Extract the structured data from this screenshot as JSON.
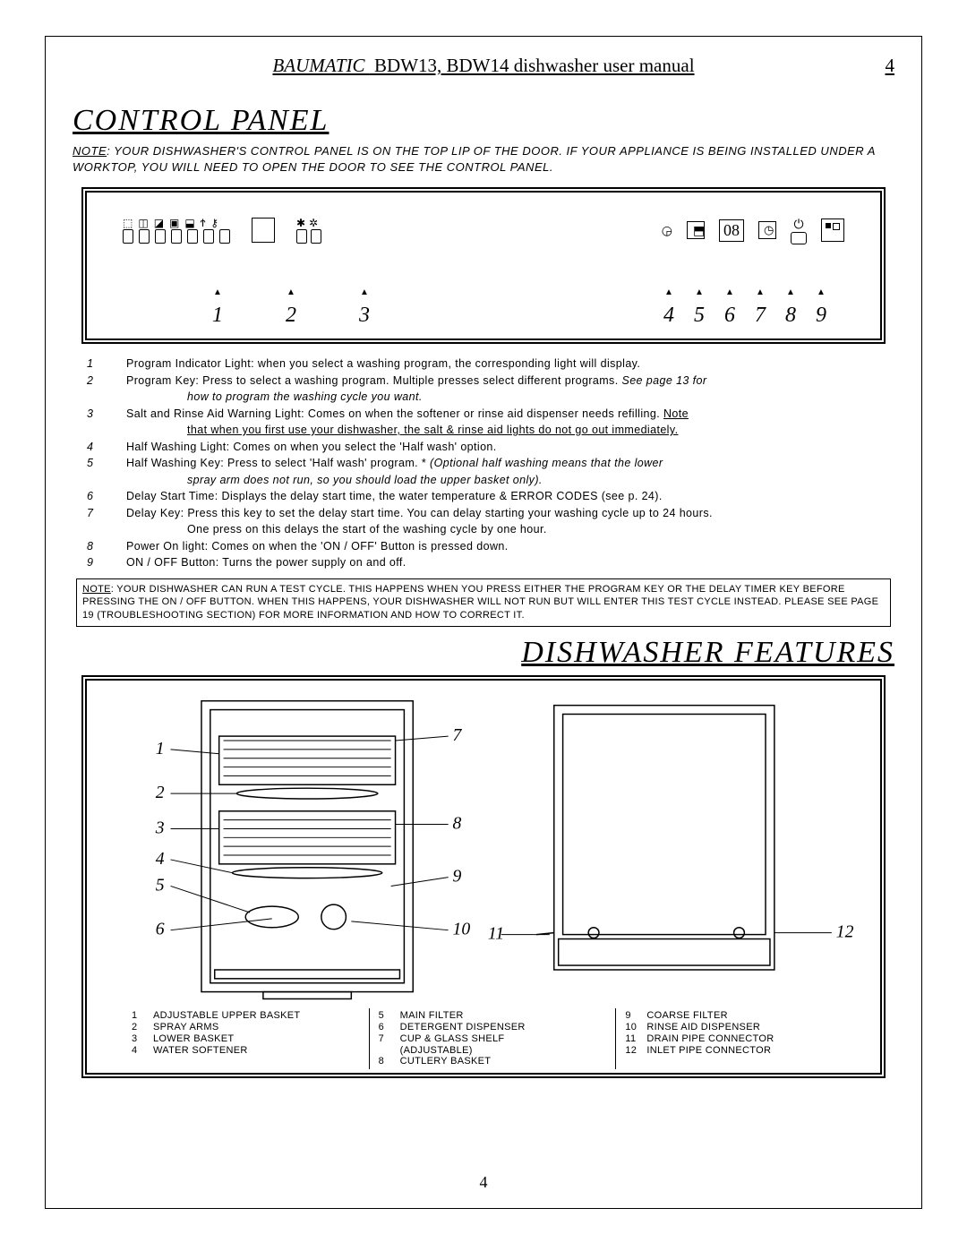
{
  "header": {
    "brand": "BAUMATIC",
    "title_rest": "BDW13, BDW14   dishwasher user manual",
    "page_num": "4"
  },
  "section1": {
    "title": "CONTROL PANEL",
    "note_underline": "NOTE",
    "note_rest": ": YOUR DISHWASHER'S CONTROL PANEL IS ON THE TOP LIP OF THE DOOR.  IF YOUR APPLIANCE IS BEING INSTALLED UNDER A WORKTOP, YOU WILL NEED TO OPEN THE DOOR TO SEE THE CONTROL PANEL."
  },
  "cp_display": "08",
  "cp_numbers_left": [
    "1",
    "2",
    "3"
  ],
  "cp_numbers_right": [
    "4",
    "5",
    "6",
    "7",
    "8",
    "9"
  ],
  "defs": [
    {
      "n": "1",
      "t": "Program Indicator Light: when you select a washing program, the corresponding light will display."
    },
    {
      "n": "2",
      "t": "Program Key: Press to select a washing program. Multiple presses select different programs.",
      "tail_i": "See page 13 for",
      "cont_i": "how to program the washing cycle you want."
    },
    {
      "n": "3",
      "t": "Salt and Rinse Aid Warning Light: Comes on when the softener or rinse aid dispenser needs refilling.",
      "tail_u": "Note",
      "cont_u": "that when you first use your dishwasher, the salt & rinse aid lights do not go out immediately."
    },
    {
      "n": "4",
      "t": "Half Washing Light: Comes on when you select the 'Half wash' option."
    },
    {
      "n": "5",
      "t": "Half Washing Key:  Press to select 'Half wash' program.  *",
      "tail_i": "(Optional half washing means that the lower",
      "cont_i": "spray arm does not run, so you should load the upper basket only)."
    },
    {
      "n": "6",
      "t": "Delay Start Time: Displays the delay start time, the water temperature & ERROR CODES (see p. 24)."
    },
    {
      "n": "7",
      "t": "Delay Key: Press this key to set the delay start time. You can delay starting your washing cycle up to 24 hours.",
      "cont": "One press on this delays the start of the washing cycle by one hour."
    },
    {
      "n": "8",
      "t": "Power On light: Comes on when the 'ON / OFF' Button is pressed down."
    },
    {
      "n": "9",
      "t": "ON / OFF Button: Turns the power supply on and off."
    }
  ],
  "note_box": {
    "u": "NOTE",
    "rest": ": YOUR DISHWASHER CAN RUN A TEST CYCLE.  THIS HAPPENS WHEN YOU PRESS EITHER THE PROGRAM KEY OR THE DELAY TIMER KEY BEFORE PRESSING THE ON / OFF BUTTON.  WHEN THIS HAPPENS, YOUR DISHWASHER WILL NOT RUN BUT WILL ENTER THIS TEST CYCLE INSTEAD.  PLEASE SEE PAGE 19 (TROUBLESHOOTING SECTION) FOR MORE INFORMATION AND HOW TO CORRECT IT."
  },
  "section2": {
    "title": "DISHWASHER FEATURES"
  },
  "feat_diagram_nums_left": [
    "1",
    "2",
    "3",
    "4",
    "5",
    "6"
  ],
  "feat_diagram_nums_mid": [
    "7",
    "8",
    "9",
    "10",
    "11"
  ],
  "feat_diagram_nums_right": [
    "12"
  ],
  "features": {
    "col1": [
      {
        "n": "1",
        "l": "ADJUSTABLE UPPER BASKET"
      },
      {
        "n": "2",
        "l": "SPRAY ARMS"
      },
      {
        "n": "3",
        "l": "LOWER BASKET"
      },
      {
        "n": "4",
        "l": "WATER SOFTENER"
      }
    ],
    "col2": [
      {
        "n": "5",
        "l": "MAIN FILTER"
      },
      {
        "n": "6",
        "l": "DETERGENT DISPENSER"
      },
      {
        "n": "7",
        "l": "CUP & GLASS SHELF",
        "sub": "(ADJUSTABLE)"
      },
      {
        "n": "8",
        "l": "CUTLERY BASKET"
      }
    ],
    "col3": [
      {
        "n": "9",
        "l": "COARSE FILTER"
      },
      {
        "n": "10",
        "l": "RINSE AID DISPENSER"
      },
      {
        "n": "11",
        "l": "DRAIN PIPE CONNECTOR"
      },
      {
        "n": "12",
        "l": "INLET PIPE CONNECTOR"
      }
    ]
  },
  "page_num_bottom": "4",
  "colors": {
    "text": "#000000",
    "bg": "#ffffff",
    "border": "#000000"
  }
}
